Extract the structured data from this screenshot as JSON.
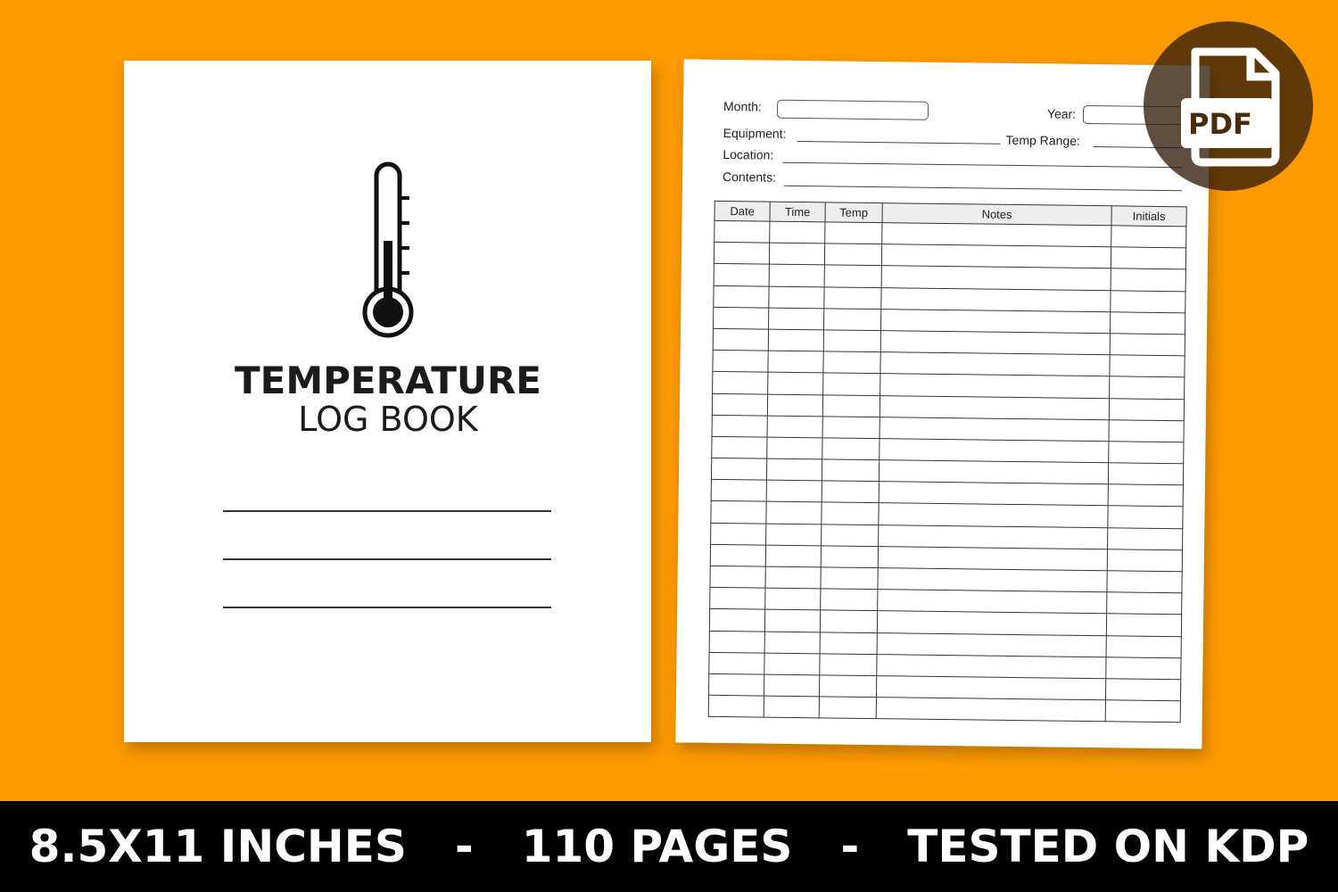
{
  "cover": {
    "title": "TEMPERATURE",
    "subtitle": "LOG BOOK",
    "icon": "thermometer-icon"
  },
  "form": {
    "month": "Month:",
    "year": "Year:",
    "equipment": "Equipment:",
    "temp_range": "Temp Range:",
    "location": "Location:",
    "contents": "Contents:",
    "columns": [
      "Date",
      "Time",
      "Temp",
      "Notes",
      "Initials"
    ]
  },
  "badge": {
    "label": "PDF",
    "icon": "pdf-file-icon"
  },
  "footer": {
    "items": [
      "8.5X11 INCHES",
      "-",
      "110 PAGES",
      "-",
      "TESTED ON KDP"
    ]
  },
  "colors": {
    "background": "#fd9a00",
    "footer": "#000000"
  }
}
